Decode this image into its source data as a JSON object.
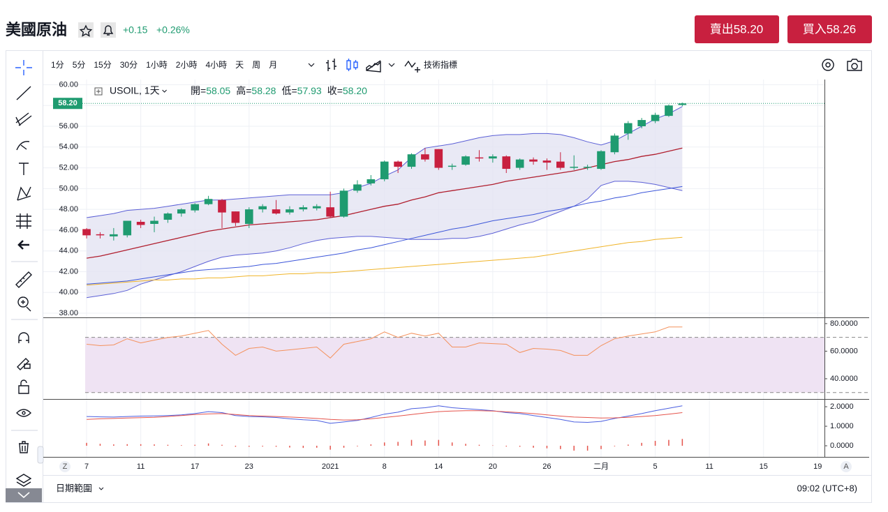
{
  "header": {
    "title": "美國原油",
    "change": "+0.15",
    "change_pct": "+0.26%",
    "sell": "賣出58.20",
    "buy": "買入58.26"
  },
  "toolbar": {
    "intervals": [
      {
        "label": "1分"
      },
      {
        "label": "5分"
      },
      {
        "label": "15分"
      },
      {
        "label": "30分"
      },
      {
        "label": "1小時"
      },
      {
        "label": "2小時"
      },
      {
        "label": "4小時"
      },
      {
        "label": "天",
        "active": true
      },
      {
        "label": "周"
      },
      {
        "label": "月"
      }
    ],
    "indicators": "技術指標"
  },
  "footer": {
    "date_range": "日期範圍",
    "time": "09:02 (UTC+8)"
  },
  "chart_data": {
    "type": "candlestick",
    "symbol": "USOIL, 1天",
    "ohlc_legend": [
      {
        "label": "開=",
        "value": "58.05"
      },
      {
        "label": "高=",
        "value": "58.28"
      },
      {
        "label": "低=",
        "value": "57.93"
      },
      {
        "label": "收=",
        "value": "58.20"
      }
    ],
    "last_price": {
      "value": 58.2,
      "label": "58.20"
    },
    "up_color": "#1f9b70",
    "down_color": "#c8203f",
    "open": [
      46.1,
      45.6,
      45.4,
      45.5,
      46.8,
      46.6,
      47.0,
      47.6,
      47.9,
      48.5,
      48.9,
      47.8,
      46.6,
      48.0,
      48.0,
      47.7,
      48.0,
      48.1,
      48.2,
      47.3,
      49.8,
      50.5,
      50.9,
      52.6,
      52.1,
      53.3,
      53.8,
      52.1,
      52.3,
      53.0,
      52.9,
      53.1,
      52.0,
      52.8,
      52.7,
      52.6,
      52.0,
      52.0,
      51.9,
      53.5,
      55.3,
      56.0,
      56.5,
      57.0,
      58.05
    ],
    "high": [
      46.2,
      45.8,
      46.2,
      46.9,
      47.0,
      47.3,
      47.7,
      48.1,
      48.6,
      49.3,
      49.0,
      47.8,
      48.2,
      48.5,
      48.9,
      48.3,
      48.4,
      48.5,
      49.7,
      50.0,
      50.8,
      51.3,
      52.7,
      52.7,
      53.4,
      53.9,
      53.8,
      52.4,
      53.2,
      53.7,
      53.3,
      53.2,
      52.9,
      53.0,
      52.9,
      53.5,
      53.2,
      52.3,
      53.7,
      55.3,
      56.5,
      56.8,
      57.3,
      58.1,
      58.28
    ],
    "low": [
      45.2,
      45.2,
      45.0,
      45.3,
      46.2,
      45.8,
      46.7,
      47.3,
      47.7,
      48.4,
      46.2,
      46.4,
      46.2,
      47.7,
      47.5,
      47.5,
      47.8,
      47.9,
      47.2,
      47.2,
      49.6,
      50.3,
      50.7,
      51.5,
      51.9,
      52.6,
      51.8,
      51.8,
      52.2,
      52.6,
      52.5,
      51.5,
      51.8,
      52.3,
      51.8,
      51.8,
      51.8,
      51.8,
      51.8,
      53.3,
      54.7,
      55.8,
      56.3,
      56.9,
      57.93
    ],
    "close": [
      45.5,
      45.5,
      45.6,
      46.9,
      46.5,
      46.9,
      47.6,
      48.0,
      48.5,
      49.0,
      47.7,
      46.7,
      48.0,
      48.3,
      47.6,
      48.0,
      48.2,
      48.3,
      47.3,
      49.8,
      50.4,
      50.9,
      52.6,
      52.1,
      53.3,
      52.8,
      52.0,
      52.2,
      53.1,
      52.9,
      53.1,
      51.9,
      52.8,
      52.6,
      52.5,
      52.0,
      52.1,
      52.1,
      53.6,
      55.1,
      56.3,
      56.6,
      57.1,
      58.0,
      58.2
    ],
    "bollinger": {
      "color": "#5b5fd6",
      "middle_color": "#b01e2e",
      "fill": "#e4e4f2",
      "upper": [
        47.2,
        47.4,
        47.6,
        47.9,
        48.0,
        48.1,
        48.3,
        48.5,
        48.7,
        48.9,
        48.9,
        49.0,
        49.1,
        49.2,
        49.3,
        49.4,
        49.4,
        49.4,
        49.4,
        49.6,
        50.1,
        50.5,
        51.2,
        51.8,
        53.0,
        53.9,
        54.1,
        54.3,
        54.6,
        54.9,
        55.1,
        55.2,
        55.2,
        55.3,
        55.3,
        55.2,
        54.9,
        54.5,
        54.2,
        54.6,
        55.3,
        56.0,
        56.7,
        57.2,
        57.9
      ],
      "middle": [
        43.3,
        43.5,
        43.8,
        44.1,
        44.4,
        44.7,
        45.0,
        45.3,
        45.6,
        45.9,
        46.1,
        46.3,
        46.5,
        46.6,
        46.7,
        46.8,
        46.9,
        47.0,
        47.2,
        47.4,
        47.7,
        48.0,
        48.3,
        48.5,
        48.9,
        49.2,
        49.6,
        49.8,
        50.0,
        50.2,
        50.4,
        50.7,
        50.9,
        51.1,
        51.3,
        51.5,
        51.7,
        52.0,
        52.3,
        52.6,
        52.8,
        53.1,
        53.3,
        53.6,
        53.9
      ],
      "lower": [
        39.5,
        39.7,
        39.9,
        40.2,
        40.8,
        41.2,
        41.6,
        42.0,
        42.5,
        43.0,
        43.4,
        43.6,
        43.7,
        43.8,
        44.0,
        44.3,
        44.7,
        45.0,
        45.2,
        45.3,
        45.4,
        45.4,
        45.3,
        45.2,
        45.1,
        45.1,
        45.1,
        45.2,
        45.2,
        45.4,
        45.7,
        46.1,
        46.5,
        46.8,
        47.3,
        47.8,
        48.3,
        49.0,
        50.3,
        50.7,
        50.7,
        50.6,
        50.4,
        50.1,
        49.8
      ]
    },
    "moving_averages": [
      {
        "color": "#3b55d9",
        "values": [
          40.8,
          40.9,
          41.0,
          41.1,
          41.3,
          41.5,
          41.7,
          41.9,
          42.1,
          42.2,
          42.3,
          42.4,
          42.5,
          42.7,
          42.8,
          43.0,
          43.2,
          43.4,
          43.6,
          43.8,
          44.1,
          44.3,
          44.6,
          44.9,
          45.2,
          45.5,
          45.8,
          46.1,
          46.3,
          46.6,
          46.9,
          47.1,
          47.3,
          47.5,
          47.8,
          48.0,
          48.3,
          48.6,
          48.8,
          49.1,
          49.3,
          49.6,
          49.8,
          50.0,
          50.2
        ]
      },
      {
        "color": "#f0b429",
        "values": [
          40.7,
          40.8,
          40.9,
          41.0,
          41.1,
          41.2,
          41.2,
          41.3,
          41.3,
          41.4,
          41.4,
          41.5,
          41.6,
          41.6,
          41.7,
          41.8,
          41.8,
          41.9,
          41.9,
          42.0,
          42.1,
          42.2,
          42.3,
          42.4,
          42.5,
          42.6,
          42.7,
          42.8,
          42.9,
          43.0,
          43.1,
          43.2,
          43.3,
          43.4,
          43.6,
          43.8,
          44.0,
          44.2,
          44.4,
          44.6,
          44.8,
          44.9,
          45.1,
          45.2,
          45.3
        ]
      }
    ],
    "xlim": [
      -3.2,
      54.5
    ],
    "xticks": [
      {
        "value": 0,
        "label": "7"
      },
      {
        "value": 4,
        "label": "11"
      },
      {
        "value": 8,
        "label": "17"
      },
      {
        "value": 12,
        "label": "23"
      },
      {
        "value": 18,
        "label": "2021"
      },
      {
        "value": 22,
        "label": "8"
      },
      {
        "value": 26,
        "label": "14"
      },
      {
        "value": 30,
        "label": "20"
      },
      {
        "value": 34,
        "label": "26"
      },
      {
        "value": 38,
        "label": "二月"
      },
      {
        "value": 42,
        "label": "5"
      },
      {
        "value": 46,
        "label": "11"
      },
      {
        "value": 50,
        "label": "15"
      },
      {
        "value": 54,
        "label": "19"
      }
    ],
    "ylim": [
      37.6,
      60.5
    ],
    "yticks": [
      {
        "value": 38,
        "label": "38.00"
      },
      {
        "value": 40,
        "label": "40.00"
      },
      {
        "value": 42,
        "label": "42.00"
      },
      {
        "value": 44,
        "label": "44.00"
      },
      {
        "value": 46,
        "label": "46.00"
      },
      {
        "value": 48,
        "label": "48.00"
      },
      {
        "value": 50,
        "label": "50.00"
      },
      {
        "value": 52,
        "label": "52.00"
      },
      {
        "value": 54,
        "label": "54.00"
      },
      {
        "value": 56,
        "label": "56.00"
      },
      {
        "value": 58,
        "label": "58.00"
      },
      {
        "value": 60,
        "label": "60.00"
      }
    ],
    "grid": true,
    "axis_buttons": [
      "Z",
      "A"
    ],
    "panes": [
      {
        "type": "line",
        "ylim": [
          25.3,
          84
        ],
        "yticks": [
          {
            "value": 40,
            "label": "40.0000"
          },
          {
            "value": 60,
            "label": "60.0000"
          },
          {
            "value": 80,
            "label": "80.0000"
          }
        ],
        "levels": [
          70,
          30
        ],
        "level_fill": "#efe3f3",
        "series": [
          {
            "color": "#f4915c",
            "values": [
              65,
              64,
              64.5,
              69,
              66,
              68,
              70,
              71,
              73,
              75,
              65,
              57,
              62,
              63,
              60,
              61,
              62,
              63,
              55,
              65,
              67,
              69,
              74,
              70,
              73,
              71,
              73,
              63,
              63,
              66,
              65.5,
              65,
              59,
              62,
              61.5,
              60.5,
              57,
              57,
              64,
              69,
              71,
              72.5,
              74,
              77.5,
              77.5
            ]
          }
        ]
      },
      {
        "type": "macd",
        "ylim": [
          -0.57,
          2.36
        ],
        "yticks": [
          {
            "value": 0,
            "label": "0.0000"
          },
          {
            "value": 1,
            "label": "1.0000"
          },
          {
            "value": 2,
            "label": "2.0000"
          }
        ],
        "series": [
          {
            "color": "#4a5ee0",
            "values": [
              1.5,
              1.48,
              1.47,
              1.5,
              1.52,
              1.53,
              1.55,
              1.58,
              1.65,
              1.75,
              1.7,
              1.55,
              1.5,
              1.48,
              1.45,
              1.38,
              1.33,
              1.3,
              1.15,
              1.22,
              1.3,
              1.45,
              1.62,
              1.72,
              1.9,
              1.95,
              2.05,
              1.95,
              1.9,
              1.85,
              1.8,
              1.7,
              1.65,
              1.55,
              1.45,
              1.35,
              1.22,
              1.2,
              1.25,
              1.4,
              1.52,
              1.65,
              1.8,
              1.92,
              2.05
            ]
          },
          {
            "color": "#e5534b",
            "values": [
              1.35,
              1.38,
              1.4,
              1.42,
              1.44,
              1.46,
              1.5,
              1.55,
              1.6,
              1.63,
              1.65,
              1.6,
              1.55,
              1.52,
              1.5,
              1.47,
              1.44,
              1.4,
              1.35,
              1.32,
              1.33,
              1.38,
              1.45,
              1.52,
              1.6,
              1.68,
              1.75,
              1.78,
              1.8,
              1.8,
              1.78,
              1.74,
              1.7,
              1.65,
              1.58,
              1.52,
              1.47,
              1.45,
              1.42,
              1.43,
              1.46,
              1.5,
              1.55,
              1.62,
              1.7
            ]
          }
        ],
        "histogram": {
          "color": "#e5534b",
          "values": [
            0.15,
            0.1,
            0.07,
            0.08,
            0.08,
            0.07,
            0.05,
            0.03,
            0.05,
            0.12,
            0.05,
            -0.05,
            -0.05,
            -0.04,
            -0.05,
            -0.09,
            -0.11,
            -0.1,
            -0.2,
            -0.1,
            -0.03,
            0.07,
            0.17,
            0.2,
            0.3,
            0.27,
            0.3,
            0.17,
            0.1,
            0.05,
            0.02,
            -0.04,
            -0.05,
            -0.1,
            -0.13,
            -0.17,
            -0.25,
            -0.25,
            -0.17,
            -0.03,
            0.06,
            0.15,
            0.25,
            0.3,
            0.35
          ]
        }
      }
    ]
  }
}
